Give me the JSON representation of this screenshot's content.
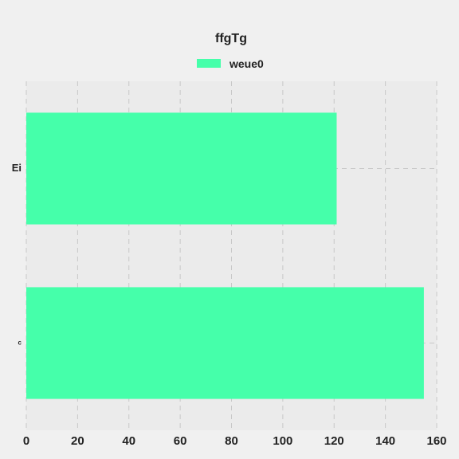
{
  "chart_data": {
    "type": "bar",
    "orientation": "horizontal",
    "title": "ffgTg",
    "xlabel": "",
    "ylabel": "",
    "categories": [
      "Ei",
      "c"
    ],
    "series": [
      {
        "name": "weue0",
        "values": [
          121,
          155
        ],
        "color": "#45ffaa"
      }
    ],
    "xlim": [
      0,
      160
    ],
    "xticks": [
      0,
      20,
      40,
      60,
      80,
      100,
      120,
      140,
      160
    ],
    "grid": true,
    "legend_position": "top-center",
    "plot_background": "#ebebeb",
    "page_background": "#f0f0f0"
  }
}
